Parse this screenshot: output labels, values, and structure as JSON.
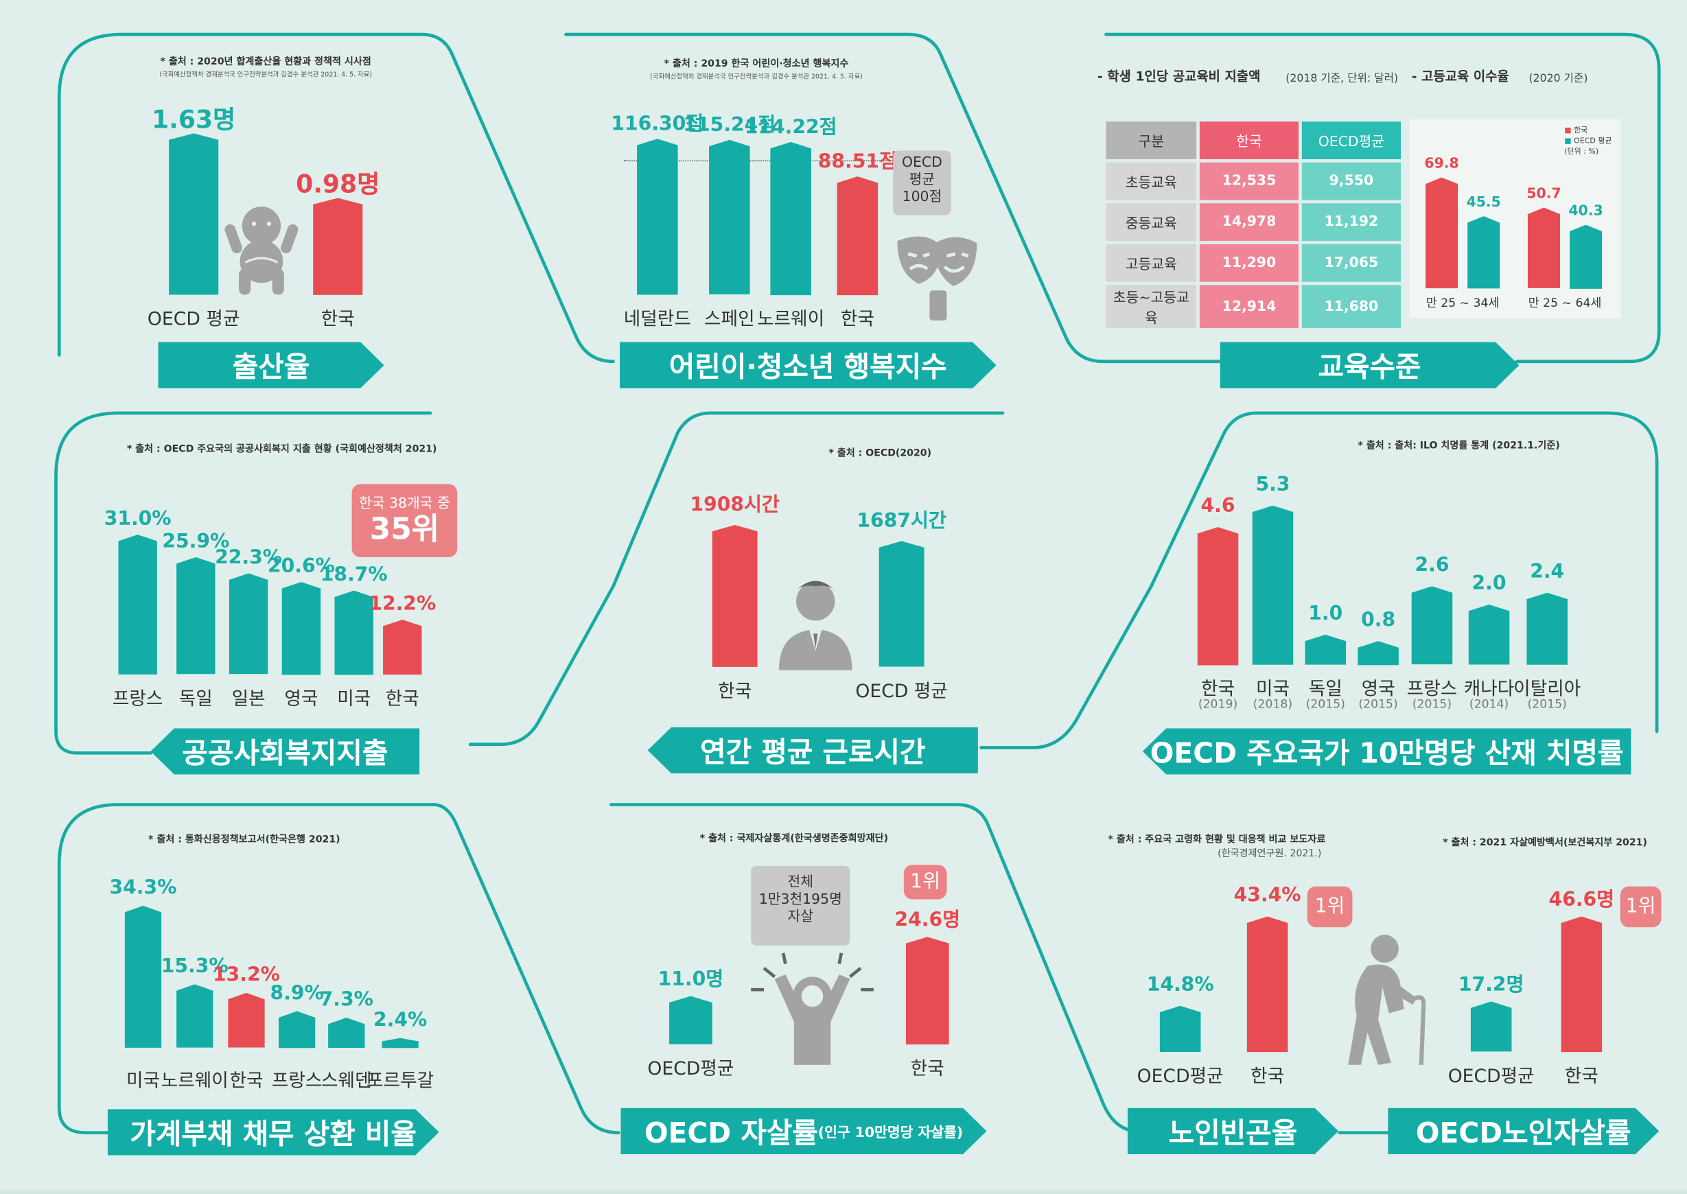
{
  "colors": {
    "teal": "#13ada6",
    "red": "#e84c53",
    "bg": "#e0efeb",
    "gray": "#a3a3a3",
    "badge": "#eb8386"
  },
  "icons": [
    "baby-icon",
    "theater-mask-icon",
    "businessman-icon",
    "stressed-person-icon",
    "elderly-person-icon"
  ],
  "chart_data": [
    {
      "id": "birth",
      "type": "bar",
      "title": "출산율",
      "source": "* 출처 : 2020년 합계출산율 현황과 정책적 시사점",
      "source_note": "(국회예산정책처 경제분석국 인구전략분석과 김경수 분석관 2021. 4. 5. 자료)",
      "categories": [
        "OECD 평균",
        "한국"
      ],
      "values": [
        1.63,
        0.98
      ],
      "labels": [
        "1.63명",
        "0.98명"
      ],
      "colors": [
        "teal",
        "red"
      ]
    },
    {
      "id": "happy",
      "type": "bar",
      "title": "어린이·청소년 행복지수",
      "source": "* 출처 : 2019 한국 어린이·청소년 행복지수",
      "source_note": "(국회예산정책처 경제분석국 인구전략분석과 김경수 분석관 2021. 4. 5. 자료)",
      "categories": [
        "네덜란드",
        "스페인",
        "노르웨이",
        "한국"
      ],
      "values": [
        116.3,
        115.24,
        114.22,
        88.51
      ],
      "labels": [
        "116.30점",
        "115.24점",
        "114.22점",
        "88.51점"
      ],
      "colors": [
        "teal",
        "teal",
        "teal",
        "red"
      ],
      "reference": {
        "value": 100,
        "label": "OECD\n평균\n100점"
      }
    },
    {
      "id": "edu",
      "type": "table",
      "title": "교육수준",
      "table_title": "- 학생 1인당 공교육비 지출액",
      "table_note": "(2018 기준, 단위: 달러)",
      "columns": [
        "구분",
        "한국",
        "OECD평균"
      ],
      "rows": [
        [
          "초등교육",
          "12,535",
          "9,550"
        ],
        [
          "중등교육",
          "14,978",
          "11,192"
        ],
        [
          "고등교육",
          "11,290",
          "17,065"
        ],
        [
          "초등~고등교육",
          "12,914",
          "11,680"
        ]
      ]
    },
    {
      "id": "edu2",
      "type": "bar",
      "title": "- 고등교육 이수율",
      "note": "(2020 기준)",
      "unit_note": "(단위 : %)",
      "categories": [
        "만 25 ~ 34세",
        "만 25 ~ 64세"
      ],
      "series": [
        {
          "name": "한국",
          "values": [
            69.8,
            50.7
          ]
        },
        {
          "name": "OECD 평균",
          "values": [
            45.5,
            40.3
          ]
        }
      ]
    },
    {
      "id": "welfare",
      "type": "bar",
      "title": "공공사회복지지출",
      "source": "* 출처 : OECD 주요국의 공공사회복지 지출 현황 (국회예산정책처 2021)",
      "categories": [
        "프랑스",
        "독일",
        "일본",
        "영국",
        "미국",
        "한국"
      ],
      "values": [
        31.0,
        25.9,
        22.3,
        20.6,
        18.7,
        12.2
      ],
      "labels": [
        "31.0%",
        "25.9%",
        "22.3%",
        "20.6%",
        "18.7%",
        "12.2%"
      ],
      "colors": [
        "teal",
        "teal",
        "teal",
        "teal",
        "teal",
        "red"
      ],
      "badge": {
        "line1": "한국 38개국 중",
        "line2": "35위"
      }
    },
    {
      "id": "work",
      "type": "bar",
      "title": "연간 평균 근로시간",
      "source": "* 출처 : OECD(2020)",
      "categories": [
        "한국",
        "OECD 평균"
      ],
      "values": [
        1908,
        1687
      ],
      "labels": [
        "1908시간",
        "1687시간"
      ],
      "colors": [
        "red",
        "teal"
      ]
    },
    {
      "id": "fatal",
      "type": "bar",
      "title": "OECD 주요국가 10만명당 산재 치명률",
      "source": "* 출처 : 출처: ILO 치명률 통계 (2021.1.기준)",
      "categories": [
        "한국",
        "미국",
        "독일",
        "영국",
        "프랑스",
        "캐나다",
        "이탈리아"
      ],
      "years": [
        "(2019)",
        "(2018)",
        "(2015)",
        "(2015)",
        "(2015)",
        "(2014)",
        "(2015)"
      ],
      "values": [
        4.6,
        5.3,
        1.0,
        0.8,
        2.6,
        2.0,
        2.4
      ],
      "labels": [
        "4.6",
        "5.3",
        "1.0",
        "0.8",
        "2.6",
        "2.0",
        "2.4"
      ],
      "colors": [
        "red",
        "teal",
        "teal",
        "teal",
        "teal",
        "teal",
        "teal"
      ]
    },
    {
      "id": "debt",
      "type": "bar",
      "title": "가계부채 채무 상환 비율",
      "source": "* 출처 : 통화신용정책보고서(한국은행 2021)",
      "categories": [
        "미국",
        "노르웨이",
        "한국",
        "프랑스",
        "스웨덴",
        "포르투갈"
      ],
      "values": [
        34.3,
        15.3,
        13.2,
        8.9,
        7.3,
        2.4
      ],
      "labels": [
        "34.3%",
        "15.3%",
        "13.2%",
        "8.9%",
        "7.3%",
        "2.4%"
      ],
      "colors": [
        "teal",
        "teal",
        "red",
        "teal",
        "teal",
        "teal"
      ]
    },
    {
      "id": "suicide",
      "type": "bar",
      "title": "OECD 자살률",
      "title_note": "(인구 10만명당 자살률)",
      "source": "* 출처 : 국제자살통계(한국생명존중희망재단)",
      "categories": [
        "OECD평균",
        "한국"
      ],
      "values": [
        11.0,
        24.6
      ],
      "labels": [
        "11.0명",
        "24.6명"
      ],
      "colors": [
        "teal",
        "red"
      ],
      "rank": "1위",
      "note": "전체\n1만3천195명\n자살"
    },
    {
      "id": "poverty",
      "type": "bar",
      "title": "노인빈곤율",
      "source": "* 출처 : 주요국 고령화 현황 및 대응책 비교 보도자료",
      "source_note": "(한국경제연구원. 2021.)",
      "categories": [
        "OECD평균",
        "한국"
      ],
      "values": [
        14.8,
        43.4
      ],
      "labels": [
        "14.8%",
        "43.4%"
      ],
      "colors": [
        "teal",
        "red"
      ],
      "rank": "1위"
    },
    {
      "id": "eldersuicide",
      "type": "bar",
      "title": "OECD노인자살률",
      "source": "* 출처 : 2021 자살예방백서(보건복지부 2021)",
      "categories": [
        "OECD평균",
        "한국"
      ],
      "values": [
        17.2,
        46.6
      ],
      "labels": [
        "17.2명",
        "46.6명"
      ],
      "colors": [
        "teal",
        "red"
      ],
      "rank": "1위"
    }
  ]
}
